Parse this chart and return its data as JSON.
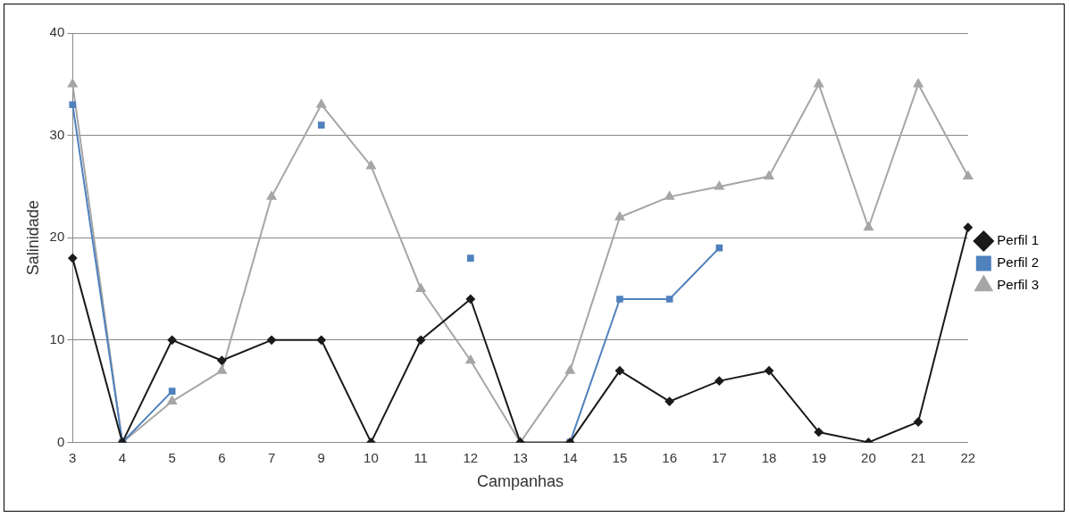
{
  "chart_data": {
    "type": "line",
    "xlabel": "Campanhas",
    "ylabel": "Salinidade",
    "categories": [
      "3",
      "4",
      "5",
      "6",
      "7",
      "9",
      "10",
      "11",
      "12",
      "13",
      "14",
      "15",
      "16",
      "17",
      "18",
      "19",
      "20",
      "21",
      "22"
    ],
    "series": [
      {
        "name": "Perfil 1",
        "color": "#1a1a1a",
        "marker": "diamond",
        "values": [
          18,
          0,
          10,
          8,
          10,
          10,
          0,
          10,
          14,
          0,
          0,
          7,
          4,
          6,
          7,
          1,
          0,
          2,
          21
        ]
      },
      {
        "name": "Perfil 2",
        "color": "#4f81bd",
        "marker": "square",
        "values": [
          33,
          0,
          5,
          null,
          null,
          31,
          null,
          null,
          18,
          null,
          0,
          14,
          14,
          19,
          null,
          null,
          null,
          null,
          null
        ]
      },
      {
        "name": "Perfil 3",
        "color": "#a6a6a6",
        "marker": "triangle",
        "values": [
          35,
          0,
          4,
          7,
          24,
          33,
          27,
          15,
          8,
          0,
          7,
          22,
          24,
          25,
          26,
          35,
          21,
          35,
          26
        ]
      }
    ],
    "ylim": [
      0,
      40
    ],
    "yticks": [
      0,
      10,
      20,
      30,
      40
    ],
    "grid": "y",
    "legend": "right",
    "line_style": "solid"
  }
}
